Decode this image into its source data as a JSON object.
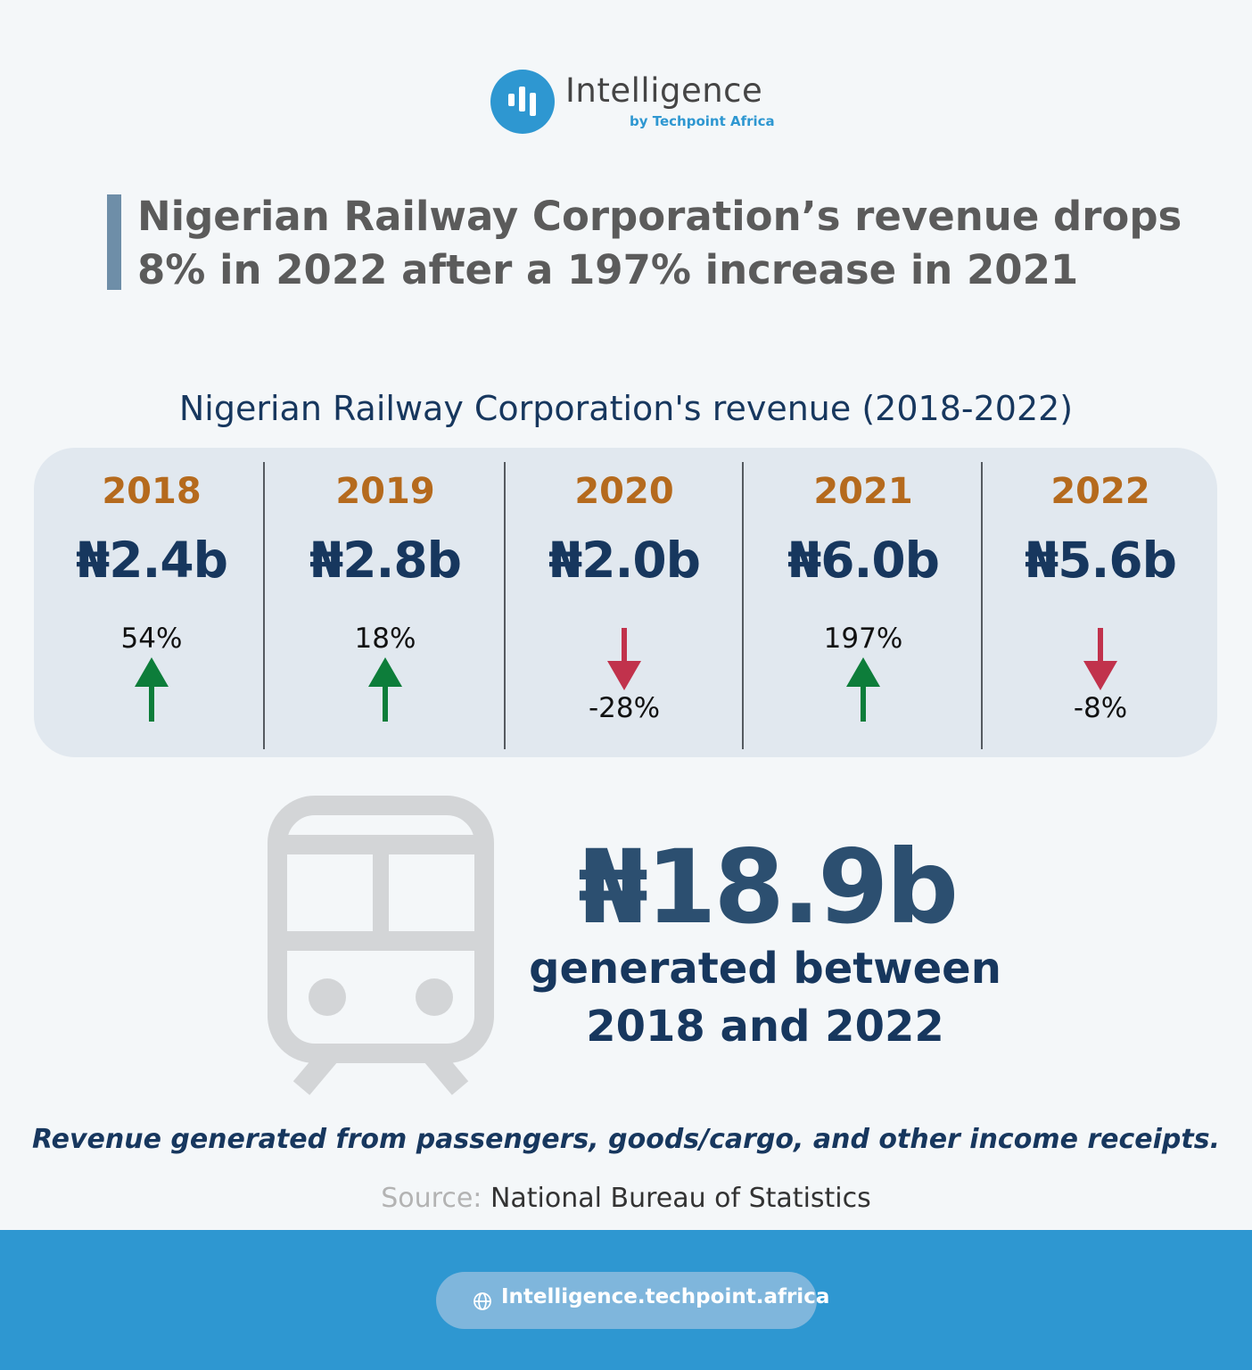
{
  "brand": {
    "name": "Intelligence",
    "tagline": "by Techpoint Africa",
    "color": "#2e97d1",
    "icon": "bar-chart-icon"
  },
  "headline": {
    "line1": "Nigerian Railway Corporation’s revenue drops",
    "line2": "8% in 2022 after a 197% increase in 2021"
  },
  "chart_data": {
    "type": "table",
    "title": "Nigerian Railway Corporation's revenue (2018-2022)",
    "categories": [
      "2018",
      "2019",
      "2020",
      "2021",
      "2022"
    ],
    "series": [
      {
        "values": [
          2.4,
          2.8,
          2.0,
          6.0,
          5.6
        ],
        "labels": [
          "₦2.4b",
          "₦2.8b",
          "₦2.0b",
          "₦6.0b",
          "₦5.6b"
        ]
      }
    ],
    "changes": [
      {
        "label": "54%",
        "direction": "up"
      },
      {
        "label": "18%",
        "direction": "up"
      },
      {
        "label": "-28%",
        "direction": "down"
      },
      {
        "label": "197%",
        "direction": "up"
      },
      {
        "label": "-8%",
        "direction": "down"
      }
    ],
    "colors": {
      "up": "#0d7d3a",
      "down": "#c1324c",
      "year": "#b56a1d",
      "value": "#17375e"
    }
  },
  "total": {
    "value": "₦18.9b",
    "caption_line1": "generated between",
    "caption_line2": "2018 and 2022",
    "icon": "train-icon"
  },
  "note": "Revenue generated from passengers, goods/cargo, and other income receipts.",
  "source": {
    "label": "Source:",
    "text": "National Bureau of Statistics"
  },
  "footer": {
    "url": "Intelligence.techpoint.africa",
    "icon": "globe-icon"
  }
}
